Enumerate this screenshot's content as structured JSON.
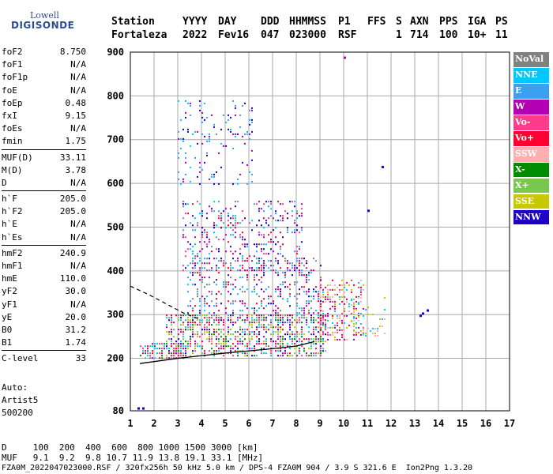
{
  "logo": {
    "line1": "Lowell",
    "line2": "DIGISONDE"
  },
  "header": {
    "labels": {
      "station": "Station",
      "yyyy": "YYYY",
      "day": "DAY",
      "ddd": "DDD",
      "hhmmss": "HHMMSS",
      "p1": "P1",
      "ffs": "FFS",
      "s": "S",
      "axn": "AXN",
      "pps": "PPS",
      "iga": "IGA",
      "ps": "PS"
    },
    "values": {
      "station": "Fortaleza",
      "yyyy": "2022",
      "day": "Fev16",
      "ddd": "047",
      "hhmmss": "023000",
      "p1": "RSF",
      "ffs": "",
      "s": "1",
      "axn": "714",
      "pps": "100",
      "iga": "10+",
      "ps": "11"
    }
  },
  "params": {
    "group1": [
      {
        "label": "foF2",
        "value": "8.750"
      },
      {
        "label": "foF1",
        "value": "N/A"
      },
      {
        "label": "foF1p",
        "value": "N/A"
      },
      {
        "label": "foE",
        "value": "N/A"
      },
      {
        "label": "foEp",
        "value": "0.48"
      },
      {
        "label": "fxI",
        "value": "9.15"
      },
      {
        "label": "foEs",
        "value": "N/A"
      },
      {
        "label": "fmin",
        "value": "1.75"
      }
    ],
    "group2": [
      {
        "label": "MUF(D)",
        "value": "33.11"
      },
      {
        "label": "M(D)",
        "value": "3.78"
      },
      {
        "label": "D",
        "value": "N/A"
      }
    ],
    "group3": [
      {
        "label": "h`F",
        "value": "205.0"
      },
      {
        "label": "h`F2",
        "value": "205.0"
      },
      {
        "label": "h`E",
        "value": "N/A"
      },
      {
        "label": "h`Es",
        "value": "N/A"
      }
    ],
    "group4": [
      {
        "label": "hmF2",
        "value": "240.9"
      },
      {
        "label": "hmF1",
        "value": "N/A"
      },
      {
        "label": "hmE",
        "value": "110.0"
      },
      {
        "label": "yF2",
        "value": "30.0"
      },
      {
        "label": "yF1",
        "value": "N/A"
      },
      {
        "label": "yE",
        "value": "20.0"
      },
      {
        "label": "B0",
        "value": "31.2"
      },
      {
        "label": "B1",
        "value": "1.74"
      }
    ],
    "group5": [
      {
        "label": "C-level",
        "value": "33"
      }
    ]
  },
  "auto": {
    "line1": "Auto:",
    "line2": "Artist5",
    "line3": "500200"
  },
  "legend": [
    {
      "label": "NoVal",
      "color": "#808080"
    },
    {
      "label": "NNE",
      "color": "#00c8ff"
    },
    {
      "label": "E",
      "color": "#3ca0f0"
    },
    {
      "label": "W",
      "color": "#b400b4"
    },
    {
      "label": "Vo-",
      "color": "#ff3c8c"
    },
    {
      "label": "Vo+",
      "color": "#ff0032"
    },
    {
      "label": "SSW",
      "color": "#ffafaf"
    },
    {
      "label": "X-",
      "color": "#008c00"
    },
    {
      "label": "X+",
      "color": "#78c850"
    },
    {
      "label": "SSE",
      "color": "#c8c800"
    },
    {
      "label": "NNW",
      "color": "#1e00c8"
    }
  ],
  "bottom": {
    "line1": "D     100  200  400  600  800 1000 1500 3000 [km]",
    "line2": "MUF   9.1  9.2  9.8 10.7 11.9 13.8 19.1 33.1 [MHz]",
    "line3": "FZA0M_2022047023000.RSF / 320fx256h 50 kHz 5.0 km / DPS-4 FZA0M 904 / 3.9 S 321.6 E  Ion2Png 1.3.20"
  },
  "chart_data": {
    "type": "scatter",
    "xlim": [
      1,
      17
    ],
    "ylim": [
      80,
      900
    ],
    "x_ticks": [
      1,
      2,
      3,
      4,
      5,
      6,
      7,
      8,
      9,
      10,
      11,
      12,
      13,
      14,
      15,
      16,
      17
    ],
    "y_ticks": [
      80,
      200,
      300,
      400,
      500,
      600,
      700,
      800,
      900
    ],
    "grid": true,
    "legend_position": "right",
    "clusters": [
      {
        "name": "F-trace base",
        "x": [
          1.4,
          3.3
        ],
        "y": [
          200,
          235
        ],
        "density": 0.6,
        "colors": [
          "#ff0032",
          "#b400b4",
          "#00c8ff",
          "#ff3c8c",
          "#008c00"
        ]
      },
      {
        "name": "F2 main",
        "x": [
          2.5,
          9.3
        ],
        "y": [
          205,
          300
        ],
        "density": 0.5,
        "colors": [
          "#ff0032",
          "#b400b4",
          "#ff3c8c",
          "#00c8ff",
          "#008c00",
          "#78c850",
          "#1e00c8",
          "#c8c800"
        ]
      },
      {
        "name": "F2 spread",
        "x": [
          3.4,
          9.1
        ],
        "y": [
          280,
          430
        ],
        "density": 0.25,
        "colors": [
          "#00c8ff",
          "#1e00c8",
          "#b400b4",
          "#3ca0f0",
          "#ff0032",
          "#808080"
        ]
      },
      {
        "name": "high-freq spread",
        "x": [
          9.0,
          10.9
        ],
        "y": [
          240,
          380
        ],
        "density": 0.35,
        "colors": [
          "#00c8ff",
          "#ff0032",
          "#ffafaf",
          "#c8c800",
          "#b400b4",
          "#ff3c8c"
        ]
      },
      {
        "name": "2nd hop",
        "x": [
          3.2,
          8.3
        ],
        "y": [
          400,
          560
        ],
        "density": 0.2,
        "colors": [
          "#ff0032",
          "#ff3c8c",
          "#b400b4",
          "#00c8ff",
          "#3ca0f0",
          "#1e00c8"
        ]
      },
      {
        "name": "3rd hop",
        "x": [
          3.0,
          6.2
        ],
        "y": [
          600,
          790
        ],
        "density": 0.12,
        "colors": [
          "#00c8ff",
          "#3ca0f0",
          "#b400b4",
          "#1e00c8"
        ]
      },
      {
        "name": "high tail",
        "x": [
          10.3,
          11.8
        ],
        "y": [
          250,
          340
        ],
        "density": 0.2,
        "colors": [
          "#ffafaf",
          "#c8c800",
          "#00c8ff"
        ]
      }
    ],
    "extra_points": [
      {
        "x": 13.2,
        "y": 300,
        "color": "#1e00c8"
      },
      {
        "x": 13.3,
        "y": 305,
        "color": "#1e00c8"
      },
      {
        "x": 13.5,
        "y": 312,
        "color": "#1e00c8"
      },
      {
        "x": 10.0,
        "y": 890,
        "color": "#b400b4"
      },
      {
        "x": 11.6,
        "y": 640,
        "color": "#1e00c8"
      },
      {
        "x": 11.0,
        "y": 540,
        "color": "#1e00c8"
      },
      {
        "x": 1.3,
        "y": 88,
        "color": "#1e00c8"
      },
      {
        "x": 1.5,
        "y": 88,
        "color": "#1e00c8"
      }
    ],
    "profile_solid": {
      "x": [
        1.4,
        3.0,
        5.0,
        7.0,
        8.0,
        8.75
      ],
      "y": [
        188,
        200,
        212,
        222,
        228,
        238
      ]
    },
    "profile_dashed": {
      "x": [
        1.0,
        1.8,
        2.6,
        3.3,
        3.9
      ],
      "y": [
        365,
        345,
        322,
        302,
        290
      ]
    }
  }
}
